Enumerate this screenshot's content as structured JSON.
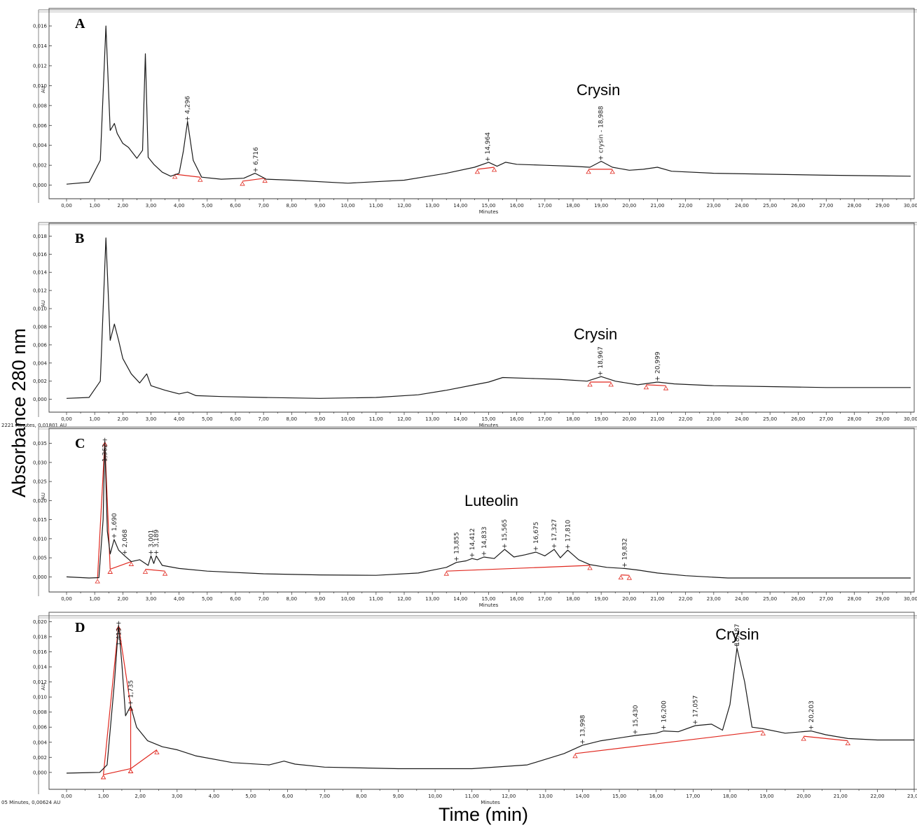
{
  "figure": {
    "ylabel": "Absorbance 280 nm",
    "xlabel": "Time (min)"
  },
  "chart_data": [
    {
      "type": "line",
      "panel": "A",
      "ylabel": "AU",
      "xlabel": "Minutes",
      "xlim": [
        0,
        30
      ],
      "ylim": [
        -0.0008,
        0.0172
      ],
      "yticks": [
        "0,000",
        "0,002",
        "0,004",
        "0,006",
        "0,008",
        "0,010",
        "0,012",
        "0,014",
        "0,016"
      ],
      "compound_label": "Crysin",
      "compound_label_x": 18.9,
      "peak_labels": [
        {
          "x": 4.296,
          "text": "4,296"
        },
        {
          "x": 6.716,
          "text": "6,716"
        },
        {
          "x": 14.964,
          "text": "14,964"
        },
        {
          "x": 18.988,
          "text": "crysin - 18,988"
        }
      ],
      "series": [
        {
          "x": [
            0,
            0.8,
            1.2,
            1.4,
            1.55,
            1.7,
            1.8,
            2.0,
            2.2,
            2.5,
            2.7,
            2.8,
            2.9,
            3.1,
            3.4,
            3.7,
            4.0,
            4.15,
            4.3,
            4.5,
            4.8,
            5.5,
            6.3,
            6.7,
            7.1,
            8,
            10,
            12,
            13.5,
            14.5,
            15.0,
            15.3,
            15.6,
            16,
            17,
            18,
            18.6,
            19.0,
            19.4,
            20,
            20.5,
            21.0,
            21.5,
            23,
            25,
            27,
            30
          ],
          "y": [
            0.0001,
            0.0003,
            0.0025,
            0.016,
            0.0055,
            0.0062,
            0.0052,
            0.0042,
            0.0038,
            0.0027,
            0.0035,
            0.0132,
            0.0028,
            0.0021,
            0.0013,
            0.0009,
            0.0012,
            0.0034,
            0.0064,
            0.0025,
            0.0008,
            0.0006,
            0.0007,
            0.0012,
            0.0006,
            0.0005,
            0.0002,
            0.0005,
            0.0012,
            0.0018,
            0.0023,
            0.0019,
            0.0023,
            0.0021,
            0.002,
            0.0019,
            0.0018,
            0.0024,
            0.0018,
            0.0015,
            0.0016,
            0.0018,
            0.0014,
            0.0012,
            0.0011,
            0.001,
            0.0009
          ]
        }
      ],
      "baselines": [
        [
          3.85,
          0.0011,
          4.75,
          0.0008
        ],
        [
          6.25,
          0.0004,
          7.05,
          0.0007
        ],
        [
          14.6,
          0.0016,
          15.2,
          0.0018
        ],
        [
          18.55,
          0.0016,
          19.4,
          0.0016
        ]
      ]
    },
    {
      "type": "line",
      "panel": "B",
      "ylabel": "AU",
      "xlabel": "Minutes",
      "xlim": [
        0,
        30
      ],
      "ylim": [
        -0.0008,
        0.0188
      ],
      "yticks": [
        "0,000",
        "0,002",
        "0,004",
        "0,006",
        "0,008",
        "0,010",
        "0,012",
        "0,014",
        "0,016",
        "0,018"
      ],
      "compound_label": "Crysin",
      "compound_label_x": 18.8,
      "status_text": "2221 Minutes, 0,01801 AU",
      "peak_labels": [
        {
          "x": 18.967,
          "text": "18,967"
        },
        {
          "x": 20.999,
          "text": "20,999"
        }
      ],
      "series": [
        {
          "x": [
            0,
            0.8,
            1.2,
            1.4,
            1.55,
            1.7,
            1.85,
            2.0,
            2.3,
            2.6,
            2.85,
            3.0,
            3.2,
            3.5,
            4.0,
            4.3,
            4.6,
            5.5,
            7,
            9,
            11,
            12.5,
            13.5,
            14.5,
            15.0,
            15.5,
            16.5,
            17.5,
            18.5,
            19.0,
            19.5,
            20.3,
            21.0,
            21.6,
            23,
            25,
            27,
            30
          ],
          "y": [
            0.0001,
            0.0002,
            0.002,
            0.0178,
            0.0065,
            0.0083,
            0.0065,
            0.0045,
            0.0028,
            0.0018,
            0.0028,
            0.0015,
            0.0013,
            0.001,
            0.0006,
            0.0008,
            0.0004,
            0.0003,
            0.0002,
            0.0001,
            0.0002,
            0.0005,
            0.001,
            0.0016,
            0.0019,
            0.0024,
            0.0023,
            0.0022,
            0.002,
            0.0025,
            0.002,
            0.0016,
            0.0019,
            0.0017,
            0.0015,
            0.0014,
            0.0013,
            0.0013
          ]
        }
      ],
      "baselines": [
        [
          18.6,
          0.0019,
          19.35,
          0.0019
        ],
        [
          20.6,
          0.0016,
          21.3,
          0.0015
        ]
      ]
    },
    {
      "type": "line",
      "panel": "C",
      "ylabel": "AU",
      "xlabel": "Minutes",
      "xlim": [
        0,
        30
      ],
      "ylim": [
        -0.0025,
        0.0375
      ],
      "yticks": [
        "0,000",
        "0,005",
        "0,010",
        "0,015",
        "0,020",
        "0,025",
        "0,030",
        "0,035"
      ],
      "compound_label": "Luteolin",
      "compound_label_x": 15.1,
      "peak_labels": [
        {
          "x": 1.362,
          "text": "1,362"
        },
        {
          "x": 1.69,
          "text": "1,690"
        },
        {
          "x": 2.068,
          "text": "2,068"
        },
        {
          "x": 3.001,
          "text": "3,001"
        },
        {
          "x": 3.189,
          "text": "3,189"
        },
        {
          "x": 13.855,
          "text": "13,855"
        },
        {
          "x": 14.412,
          "text": "14,412"
        },
        {
          "x": 14.833,
          "text": "14,833"
        },
        {
          "x": 15.565,
          "text": "15,565"
        },
        {
          "x": 16.675,
          "text": "16,675"
        },
        {
          "x": 17.327,
          "text": "17,327"
        },
        {
          "x": 17.81,
          "text": "17,810"
        },
        {
          "x": 19.832,
          "text": "19,832"
        }
      ],
      "series": [
        {
          "x": [
            0,
            0.8,
            1.15,
            1.3,
            1.36,
            1.45,
            1.55,
            1.69,
            1.85,
            2.07,
            2.3,
            2.6,
            2.9,
            3.0,
            3.1,
            3.19,
            3.4,
            4,
            5,
            7,
            9,
            11,
            12.5,
            13.5,
            13.86,
            14.2,
            14.41,
            14.6,
            14.83,
            15.2,
            15.57,
            15.9,
            16.3,
            16.68,
            17.0,
            17.33,
            17.55,
            17.81,
            18.2,
            18.6,
            19.2,
            19.83,
            20.3,
            21,
            22,
            23.5,
            25,
            27,
            30
          ],
          "y": [
            0.0,
            -0.0003,
            -0.0002,
            0.015,
            0.0355,
            0.012,
            0.006,
            0.0098,
            0.007,
            0.0055,
            0.004,
            0.0045,
            0.003,
            0.0055,
            0.0035,
            0.0055,
            0.003,
            0.0022,
            0.0015,
            0.0008,
            0.0005,
            0.0004,
            0.001,
            0.0025,
            0.0038,
            0.0042,
            0.0048,
            0.0045,
            0.0052,
            0.0048,
            0.0072,
            0.0052,
            0.0058,
            0.0065,
            0.0055,
            0.0072,
            0.005,
            0.007,
            0.0045,
            0.0032,
            0.0025,
            0.0022,
            0.0018,
            0.001,
            0.0003,
            -0.0003,
            -0.0003,
            -0.0003,
            -0.0003
          ]
        }
      ],
      "baselines": [
        [
          1.1,
          -0.0005,
          1.36,
          0.0355
        ],
        [
          1.36,
          0.0355,
          1.55,
          0.002
        ],
        [
          1.55,
          0.002,
          2.3,
          0.004
        ],
        [
          2.8,
          0.002,
          3.5,
          0.0015
        ],
        [
          13.5,
          0.0015,
          18.6,
          0.003
        ],
        [
          19.7,
          0.0005,
          20.0,
          0.0004
        ]
      ]
    },
    {
      "type": "line",
      "panel": "D",
      "ylabel": "AU",
      "xlabel": "Minutes",
      "xlim": [
        0,
        23
      ],
      "ylim": [
        -0.0015,
        0.0205
      ],
      "yticks": [
        "0,000",
        "0,002",
        "0,004",
        "0,006",
        "0,008",
        "0,010",
        "0,012",
        "0,014",
        "0,016",
        "0,018",
        "0,020"
      ],
      "compound_label": "Crysin",
      "compound_label_x": 18.2,
      "status_text": "05 Minutes, 0,00624 AU",
      "peak_labels": [
        {
          "x": 1.413,
          "text": "1,413"
        },
        {
          "x": 1.735,
          "text": "1,735"
        },
        {
          "x": 13.998,
          "text": "13,998"
        },
        {
          "x": 15.43,
          "text": "15,430"
        },
        {
          "x": 16.2,
          "text": "16,200"
        },
        {
          "x": 17.057,
          "text": "17,057"
        },
        {
          "x": 18.187,
          "text": "18,187"
        },
        {
          "x": 20.203,
          "text": "20,203"
        }
      ],
      "series": [
        {
          "x": [
            0,
            0.9,
            1.1,
            1.3,
            1.41,
            1.5,
            1.6,
            1.74,
            1.9,
            2.2,
            2.6,
            3.0,
            3.5,
            4.5,
            5.5,
            5.9,
            6.2,
            7,
            9,
            11,
            12.5,
            13.5,
            14.0,
            14.5,
            15.43,
            16.0,
            16.2,
            16.6,
            17.06,
            17.5,
            17.8,
            18.0,
            18.19,
            18.4,
            18.6,
            18.9,
            19.5,
            20.2,
            20.6,
            21.2,
            22,
            23
          ],
          "y": [
            -0.0001,
            0.0,
            0.001,
            0.012,
            0.0195,
            0.0145,
            0.0075,
            0.0088,
            0.006,
            0.0042,
            0.0034,
            0.003,
            0.0022,
            0.0013,
            0.001,
            0.0015,
            0.0011,
            0.0007,
            0.0005,
            0.0005,
            0.001,
            0.0025,
            0.0036,
            0.0042,
            0.0049,
            0.0052,
            0.0055,
            0.0054,
            0.0062,
            0.0064,
            0.0056,
            0.009,
            0.0165,
            0.012,
            0.006,
            0.0058,
            0.0052,
            0.0055,
            0.005,
            0.0045,
            0.0043,
            0.0043
          ]
        }
      ],
      "baselines": [
        [
          1.0,
          -0.0003,
          1.41,
          0.0195
        ],
        [
          1.41,
          0.0195,
          1.74,
          0.0088
        ],
        [
          1.74,
          0.0088,
          1.74,
          0.0005
        ],
        [
          1.74,
          0.0005,
          2.45,
          0.003
        ],
        [
          1.0,
          -0.0003,
          1.74,
          0.0005
        ],
        [
          13.8,
          0.0025,
          18.9,
          0.0055
        ],
        [
          20.0,
          0.0048,
          21.2,
          0.0042
        ]
      ]
    }
  ]
}
